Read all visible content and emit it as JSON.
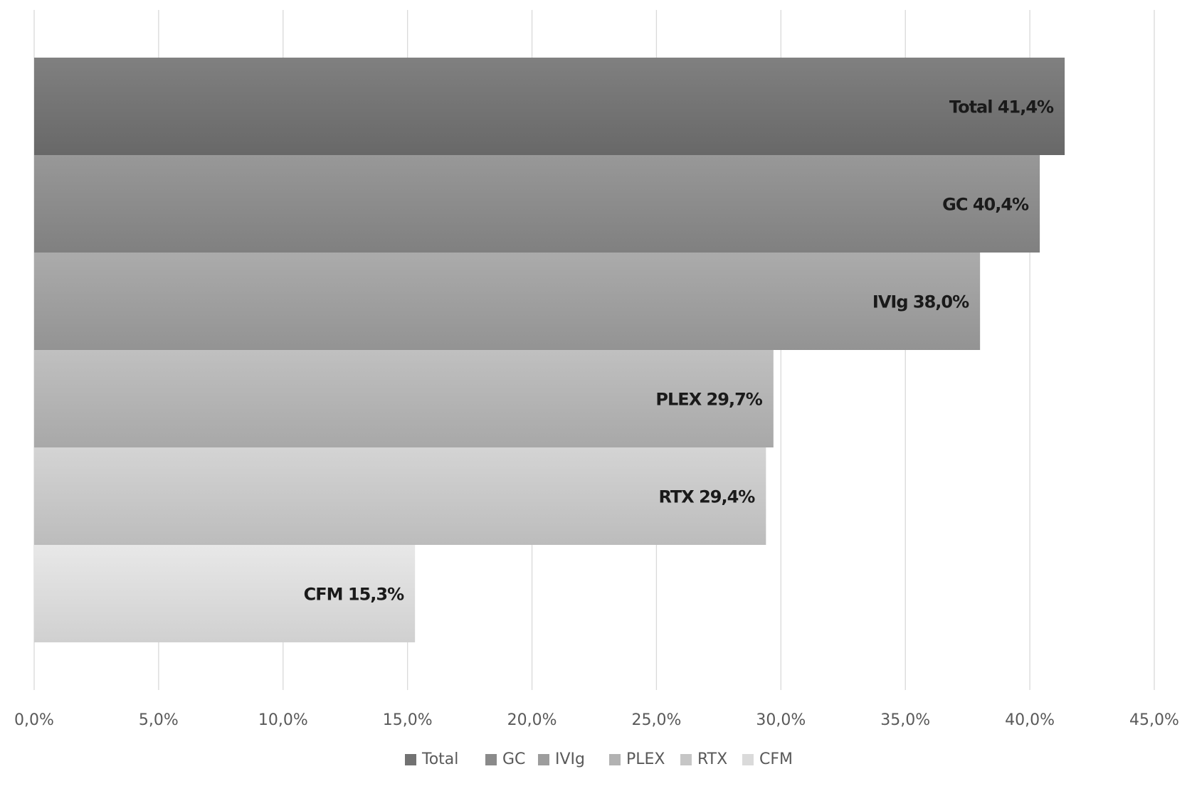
{
  "chart_data": {
    "type": "bar",
    "orientation": "horizontal",
    "categories": [
      "Total",
      "GC",
      "IVIg",
      "PLEX",
      "RTX",
      "CFM"
    ],
    "values": [
      41.4,
      40.4,
      38.0,
      29.7,
      29.4,
      15.3
    ],
    "data_labels": [
      "Total 41,4%",
      "GC 40,4%",
      "IVIg 38,0%",
      "PLEX 29,7%",
      "RTX 29,4%",
      "CFM 15,3%"
    ],
    "colors": [
      "#727272",
      "#8a8a8a",
      "#9d9d9d",
      "#b2b2b2",
      "#c6c6c6",
      "#dadada"
    ],
    "xlim": [
      0,
      45
    ],
    "x_ticks": [
      0,
      5,
      10,
      15,
      20,
      25,
      30,
      35,
      40,
      45
    ],
    "x_tick_labels": [
      "0,0%",
      "5,0%",
      "10,0%",
      "15,0%",
      "20,0%",
      "25,0%",
      "30,0%",
      "35,0%",
      "40,0%",
      "45,0%"
    ],
    "grid": true,
    "legend": {
      "position": "bottom",
      "entries": [
        "Total",
        "GC",
        "IVIg",
        "PLEX",
        "RTX",
        "CFM"
      ]
    },
    "title": "",
    "xlabel": "",
    "ylabel": ""
  }
}
